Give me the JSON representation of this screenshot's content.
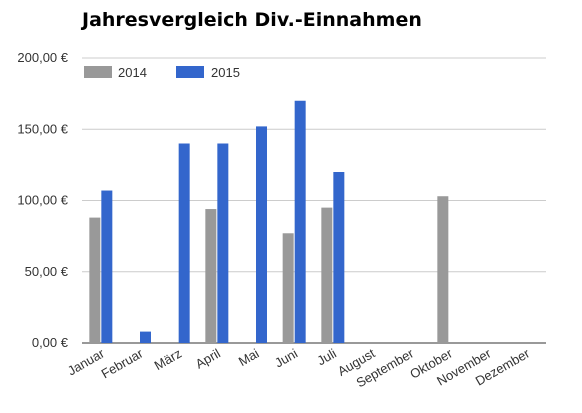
{
  "chart_data": {
    "type": "bar",
    "title": "Jahresvergleich Div.-Einnahmen",
    "categories": [
      "Januar",
      "Februar",
      "März",
      "April",
      "Mai",
      "Juni",
      "Juli",
      "August",
      "September",
      "Oktober",
      "November",
      "Dezember"
    ],
    "series": [
      {
        "name": "2014",
        "color": "#999999",
        "values": [
          88,
          0,
          0,
          94,
          0,
          77,
          95,
          0,
          0,
          103,
          0,
          0
        ]
      },
      {
        "name": "2015",
        "color": "#3366cc",
        "values": [
          107,
          8,
          140,
          140,
          152,
          170,
          120,
          0,
          0,
          0,
          0,
          0
        ]
      }
    ],
    "ylim": [
      0,
      200
    ],
    "yticks": [
      0,
      50,
      100,
      150,
      200
    ],
    "ytick_labels": [
      "0,00 €",
      "50,00 €",
      "100,00 €",
      "150,00 €",
      "200,00 €"
    ],
    "grid": true,
    "legend_position": "top-left"
  }
}
